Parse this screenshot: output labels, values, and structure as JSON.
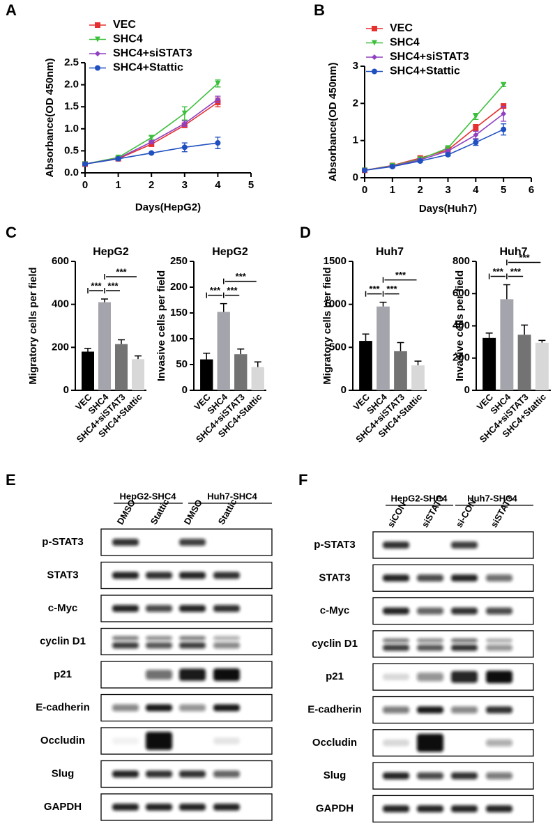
{
  "chart_data": [
    {
      "type": "line",
      "panel": "A",
      "xlabel": "Days(HepG2)",
      "ylabel": "Absorbance(OD 450nm)",
      "x": [
        0,
        1,
        2,
        3,
        4
      ],
      "xlim": [
        0,
        5
      ],
      "xticks": [
        0,
        1,
        2,
        3,
        4,
        5
      ],
      "ylim": [
        0,
        2.5
      ],
      "yticks": [
        {
          "value": 0,
          "label": "0.0"
        },
        0.5,
        {
          "value": 1,
          "label": "1.0"
        },
        1.5,
        {
          "value": 2,
          "label": "2.0"
        },
        2.5
      ],
      "series": [
        {
          "name": "VEC",
          "color": "#e53030",
          "marker": "square",
          "values": [
            0.2,
            0.32,
            0.65,
            1.08,
            1.6
          ],
          "errors": [
            0.02,
            0.02,
            0.03,
            0.05,
            0.1
          ]
        },
        {
          "name": "SHC4",
          "color": "#3cbf3c",
          "marker": "triangle",
          "values": [
            0.2,
            0.35,
            0.8,
            1.35,
            2.03
          ],
          "errors": [
            0.02,
            0.02,
            0.04,
            0.15,
            0.08
          ]
        },
        {
          "name": "SHC4+siSTAT3",
          "color": "#9040c0",
          "marker": "diamond",
          "values": [
            0.2,
            0.33,
            0.7,
            1.12,
            1.67
          ],
          "errors": [
            0.02,
            0.02,
            0.03,
            0.06,
            0.07
          ]
        },
        {
          "name": "SHC4+Stattic",
          "color": "#2050c0",
          "marker": "circle",
          "values": [
            0.2,
            0.32,
            0.45,
            0.58,
            0.68
          ],
          "errors": [
            0.02,
            0.02,
            0.02,
            0.1,
            0.13
          ]
        }
      ]
    },
    {
      "type": "line",
      "panel": "B",
      "xlabel": "Days(Huh7)",
      "ylabel": "Absorbance(OD 450nm)",
      "x": [
        0,
        1,
        2,
        3,
        4,
        5
      ],
      "xlim": [
        0,
        6
      ],
      "xticks": [
        0,
        1,
        2,
        3,
        4,
        5,
        6
      ],
      "ylim": [
        0,
        3
      ],
      "yticks": [
        0,
        1,
        2,
        3
      ],
      "series": [
        {
          "name": "VEC",
          "color": "#e53030",
          "marker": "square",
          "values": [
            0.2,
            0.33,
            0.53,
            0.75,
            1.35,
            1.93
          ],
          "errors": [
            0.02,
            0.02,
            0.03,
            0.04,
            0.08,
            0.05
          ]
        },
        {
          "name": "SHC4",
          "color": "#3cbf3c",
          "marker": "triangle",
          "values": [
            0.2,
            0.32,
            0.5,
            0.8,
            1.65,
            2.5
          ],
          "errors": [
            0.02,
            0.02,
            0.03,
            0.04,
            0.08,
            0.05
          ]
        },
        {
          "name": "SHC4+siSTAT3",
          "color": "#9040c0",
          "marker": "diamond",
          "values": [
            0.2,
            0.31,
            0.48,
            0.72,
            1.15,
            1.72
          ],
          "errors": [
            0.02,
            0.02,
            0.03,
            0.04,
            0.1,
            0.2
          ]
        },
        {
          "name": "SHC4+Stattic",
          "color": "#2050c0",
          "marker": "circle",
          "values": [
            0.2,
            0.3,
            0.45,
            0.62,
            0.95,
            1.3
          ],
          "errors": [
            0.02,
            0.02,
            0.03,
            0.03,
            0.08,
            0.15
          ]
        }
      ]
    },
    {
      "type": "bar",
      "panel": "C",
      "title": "HepG2",
      "ylabel": "Migratory cells per field",
      "categories": [
        "VEC",
        "SHC4",
        "SHC4+siSTAT3",
        "SHC4+Stattic"
      ],
      "values": [
        180,
        410,
        215,
        145
      ],
      "errors": [
        15,
        15,
        20,
        15
      ],
      "colors": [
        "#000000",
        "#a4a4ac",
        "#737373",
        "#d8d8d8"
      ],
      "ylim": [
        0,
        600
      ],
      "yticks": [
        0,
        200,
        400,
        600
      ],
      "significance": [
        {
          "pair": [
            "VEC",
            "SHC4"
          ],
          "label": "***"
        },
        {
          "pair": [
            "SHC4",
            "SHC4+siSTAT3"
          ],
          "label": "***"
        },
        {
          "pair": [
            "SHC4",
            "SHC4+Stattic"
          ],
          "label": "***"
        }
      ]
    },
    {
      "type": "bar",
      "title": "HepG2",
      "ylabel": "Invasive cells per field",
      "categories": [
        "VEC",
        "SHC4",
        "SHC4+siSTAT3",
        "SHC4+Stattic"
      ],
      "values": [
        60,
        152,
        70,
        45
      ],
      "errors": [
        12,
        16,
        10,
        10
      ],
      "colors": [
        "#000000",
        "#a4a4ac",
        "#737373",
        "#d8d8d8"
      ],
      "ylim": [
        0,
        250
      ],
      "yticks": [
        0,
        50,
        100,
        150,
        200,
        250
      ],
      "significance": [
        {
          "pair": [
            "VEC",
            "SHC4"
          ],
          "label": "***"
        },
        {
          "pair": [
            "SHC4",
            "SHC4+siSTAT3"
          ],
          "label": "***"
        },
        {
          "pair": [
            "SHC4",
            "SHC4+Stattic"
          ],
          "label": "***"
        }
      ]
    },
    {
      "type": "bar",
      "panel": "D",
      "title": "Huh7",
      "ylabel": "Migratory cells per field",
      "categories": [
        "VEC",
        "SHC4",
        "SHC4+siSTAT3",
        "SHC4+Stattic"
      ],
      "values": [
        575,
        975,
        455,
        290
      ],
      "errors": [
        80,
        50,
        100,
        50
      ],
      "colors": [
        "#000000",
        "#a4a4ac",
        "#737373",
        "#d8d8d8"
      ],
      "ylim": [
        0,
        1500
      ],
      "yticks": [
        0,
        500,
        1000,
        1500
      ],
      "significance": [
        {
          "pair": [
            "VEC",
            "SHC4"
          ],
          "label": "***"
        },
        {
          "pair": [
            "SHC4",
            "SHC4+siSTAT3"
          ],
          "label": "***"
        },
        {
          "pair": [
            "SHC4",
            "SHC4+Stattic"
          ],
          "label": "***"
        }
      ]
    },
    {
      "type": "bar",
      "title": "Huh7",
      "ylabel": "Invasive cells per field",
      "categories": [
        "VEC",
        "SHC4",
        "SHC4+siSTAT3",
        "SHC4+Stattic"
      ],
      "values": [
        325,
        565,
        345,
        295
      ],
      "errors": [
        30,
        90,
        60,
        15
      ],
      "colors": [
        "#000000",
        "#a4a4ac",
        "#737373",
        "#d8d8d8"
      ],
      "ylim": [
        0,
        800
      ],
      "yticks": [
        0,
        200,
        400,
        600,
        800
      ],
      "significance": [
        {
          "pair": [
            "VEC",
            "SHC4"
          ],
          "label": "***"
        },
        {
          "pair": [
            "SHC4",
            "SHC4+siSTAT3"
          ],
          "label": "***"
        },
        {
          "pair": [
            "SHC4",
            "SHC4+Stattic"
          ],
          "label": "***"
        }
      ]
    }
  ],
  "blots": [
    {
      "panel": "E",
      "groups": [
        "HepG2-SHC4",
        "Huh7-SHC4"
      ],
      "lanes": [
        "DMSO",
        "Stattic",
        "DMSO",
        "Stattic"
      ],
      "rows": [
        "p-STAT3",
        "STAT3",
        "c-Myc",
        "cyclin D1",
        "p21",
        "E-cadherin",
        "Occludin",
        "Slug",
        "GAPDH"
      ]
    },
    {
      "panel": "F",
      "groups": [
        "HepG2-SHC4",
        "Huh7-SHC4"
      ],
      "lanes": [
        "siCON",
        "siSTAT3",
        "si-CON",
        "siSTAT3"
      ],
      "rows": [
        "p-STAT3",
        "STAT3",
        "c-Myc",
        "cyclin D1",
        "p21",
        "E-cadherin",
        "Occludin",
        "Slug",
        "GAPDH"
      ]
    }
  ]
}
